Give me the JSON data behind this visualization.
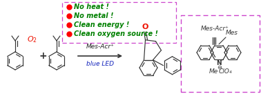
{
  "bg_color": "#ffffff",
  "red_color": "#ff0000",
  "green_color": "#008000",
  "arrow_color": "#333333",
  "bond_color": "#333333",
  "o2_color": "#ee1100",
  "ketone_color": "#ee1100",
  "box_color": "#cc44cc",
  "catalyst_text": "Mes-Acr⁺",
  "condition_text": "blue LED",
  "bullet_texts": [
    "No heat !",
    "No metal !",
    "Clean energy !",
    "Clean oxygen source !"
  ],
  "mes_acr_label": "Mes-Acr⁺",
  "mes_label": "Mes",
  "me_label": "Me",
  "clo4_label": "ClO₄",
  "figsize": [
    3.78,
    1.36
  ],
  "dpi": 100
}
